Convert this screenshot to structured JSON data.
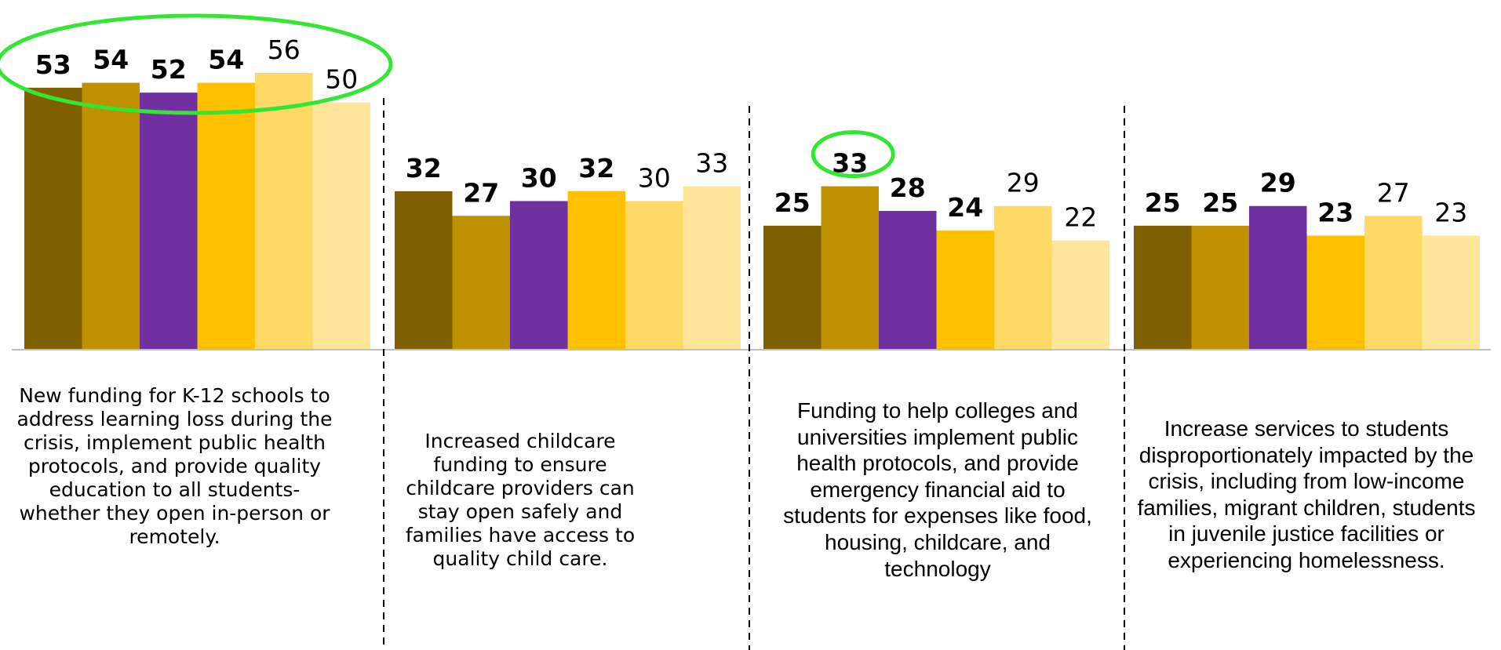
{
  "chart_data": {
    "type": "bar",
    "categories": [
      "New funding for K-12 schools to address learning loss during the crisis, implement public health protocols, and provide quality education to all students-whether they open in-person or remotely.",
      "Increased childcare funding to ensure childcare providers can stay open safely and families have access to quality child care.",
      "Funding to help colleges and universities implement public health protocols, and provide emergency financial aid to students for expenses like food, housing, childcare, and technology",
      "Increase services to students disproportionately impacted by the crisis, including from low-income families, migrant children, students in juvenile justice facilities or experiencing homelessness."
    ],
    "series": [
      {
        "color": "#7f6000",
        "values": [
          53,
          32,
          25,
          25
        ]
      },
      {
        "color": "#bf9000",
        "values": [
          54,
          27,
          33,
          25
        ]
      },
      {
        "color": "#7030a0",
        "values": [
          52,
          30,
          28,
          29
        ]
      },
      {
        "color": "#ffc000",
        "values": [
          54,
          32,
          24,
          23
        ]
      },
      {
        "color": "#ffd966",
        "values": [
          56,
          30,
          29,
          27
        ]
      },
      {
        "color": "#ffe699",
        "values": [
          50,
          33,
          22,
          23
        ]
      }
    ],
    "bold_value_series": [
      0,
      1,
      2,
      3
    ],
    "highlight": [
      {
        "category": 0,
        "series": [
          0,
          1,
          2,
          3,
          4,
          5
        ]
      },
      {
        "category": 2,
        "series": [
          1
        ]
      }
    ],
    "highlight_color": "#33e633",
    "ylim": [
      0,
      56
    ],
    "gridlines": false,
    "legend": "none",
    "separators": "dashed",
    "title": "",
    "xlabel": "",
    "ylabel": ""
  }
}
